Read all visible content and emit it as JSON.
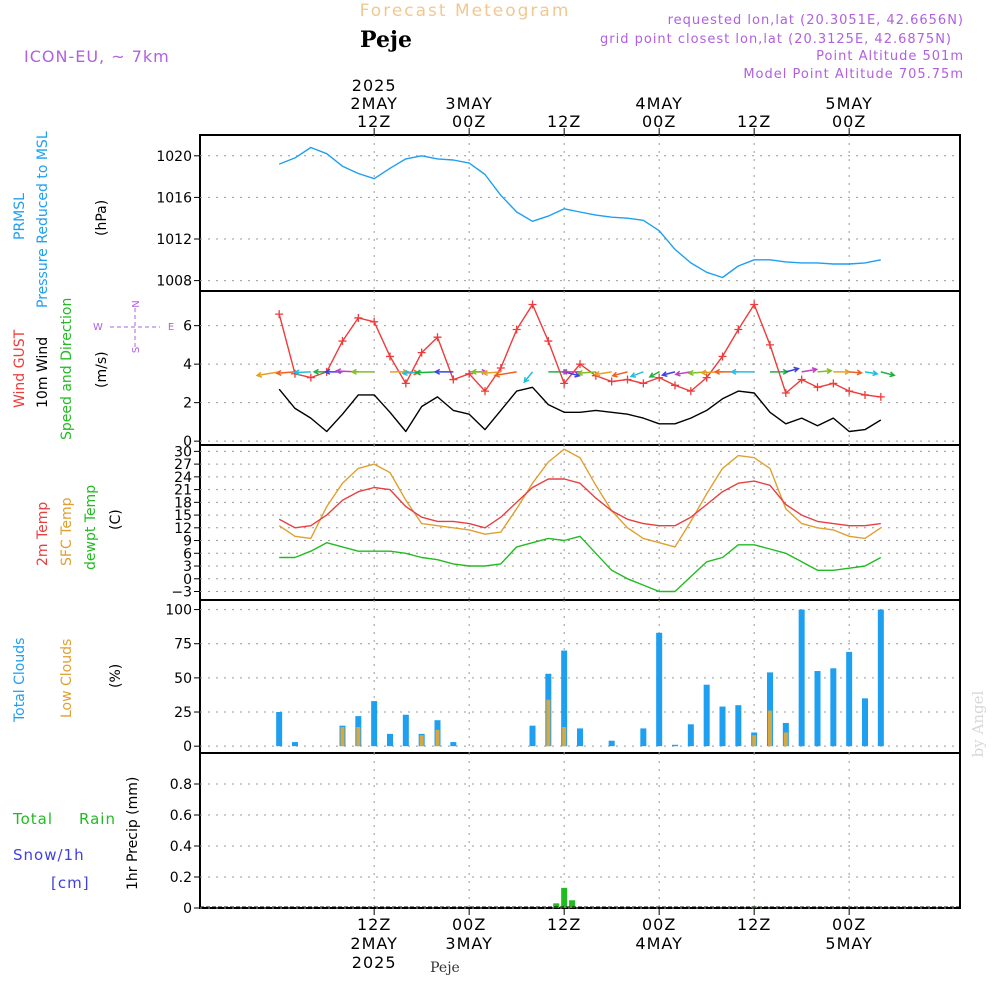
{
  "header": {
    "product": "Forecast Meteogram",
    "location": "Peje",
    "model": "ICON-EU, ~ 7km",
    "requested": "requested lon,lat (20.3051E, 42.6656N)",
    "grid_point": "grid point closest lon,lat (20.3125E, 42.6875N)",
    "altitude": "Point Altitude 501m",
    "model_altitude": "Model Point Altitude 705.75m"
  },
  "footer": {
    "location": "Peje",
    "watermark": "by Angel"
  },
  "time_axis": {
    "top_ticks": [
      {
        "hour": 12,
        "lines": [
          "2025",
          "2MAY",
          "12Z"
        ]
      },
      {
        "hour": 24,
        "lines": [
          "3MAY",
          "00Z"
        ]
      },
      {
        "hour": 36,
        "lines": [
          "12Z"
        ]
      },
      {
        "hour": 48,
        "lines": [
          "4MAY",
          "00Z"
        ]
      },
      {
        "hour": 60,
        "lines": [
          "12Z"
        ]
      },
      {
        "hour": 72,
        "lines": [
          "5MAY",
          "00Z"
        ]
      }
    ],
    "bottom_ticks": [
      {
        "hour": 12,
        "lines": [
          "12Z",
          "2MAY",
          "2025"
        ]
      },
      {
        "hour": 24,
        "lines": [
          "00Z",
          "3MAY"
        ]
      },
      {
        "hour": 36,
        "lines": [
          "12Z"
        ]
      },
      {
        "hour": 48,
        "lines": [
          "00Z",
          "4MAY"
        ]
      },
      {
        "hour": 60,
        "lines": [
          "12Z"
        ]
      },
      {
        "hour": 72,
        "lines": [
          "00Z",
          "5MAY"
        ]
      }
    ]
  },
  "panels": {
    "pressure": {
      "labels": [
        "PRMSL",
        "Pressure Reduced to MSL"
      ],
      "unit": "(hPa)"
    },
    "wind": {
      "labels": [
        "Wind GUST",
        "10m Wind",
        "Speed and Direction"
      ],
      "unit": "(m/s)",
      "compass": {
        "n": "N",
        "s": "S",
        "e": "E",
        "w": "W"
      }
    },
    "temp": {
      "labels": [
        "2m Temp",
        "SFC Temp",
        "dewpt Temp"
      ],
      "unit": "(C)"
    },
    "clouds": {
      "labels": [
        "Total Clouds",
        "Low Clouds"
      ],
      "unit": "(%)"
    },
    "precip": {
      "labels": [
        "Total",
        "Rain",
        "Snow/1h",
        "[cm]"
      ],
      "unit": "1hr Precip (mm)"
    }
  },
  "colors": {
    "pressure": "#1e9ff0",
    "gust": "#ee3b3b",
    "wind": "#000000",
    "temp2m": "#e84040",
    "sfc": "#e0a030",
    "dewpt": "#22bb22",
    "total_clouds": "#1e9ff0",
    "low_clouds": "#d8a840",
    "rain": "#22bb22",
    "snow": "#4040e0",
    "header_purple": "#b060e0",
    "title_orange": "#f0c890"
  },
  "chart_data": [
    {
      "type": "line",
      "title": "PRMSL Pressure Reduced to MSL",
      "ylabel": "(hPa)",
      "ylim": [
        1007,
        1022
      ],
      "yticks": [
        1008,
        1012,
        1016,
        1020
      ],
      "grid": true,
      "series": [
        {
          "name": "PRMSL",
          "x": [
            0,
            2,
            4,
            6,
            8,
            10,
            12,
            14,
            16,
            18,
            20,
            22,
            24,
            26,
            28,
            30,
            32,
            34,
            36,
            38,
            40,
            42,
            44,
            46,
            48,
            50,
            52,
            54,
            56,
            58,
            60,
            62,
            64,
            66,
            68,
            70,
            72,
            74,
            76
          ],
          "values": [
            1019.2,
            1019.8,
            1020.8,
            1020.2,
            1019.0,
            1018.3,
            1017.8,
            1018.8,
            1019.7,
            1020.0,
            1019.7,
            1019.6,
            1019.3,
            1018.2,
            1016.2,
            1014.6,
            1013.7,
            1014.2,
            1014.9,
            1014.6,
            1014.3,
            1014.1,
            1014.0,
            1013.8,
            1012.8,
            1011.0,
            1009.7,
            1008.8,
            1008.3,
            1009.4,
            1010.0,
            1010.0,
            1009.8,
            1009.7,
            1009.7,
            1009.6,
            1009.6,
            1009.7,
            1010.0
          ]
        }
      ]
    },
    {
      "type": "line",
      "title": "Wind GUST / 10m Wind Speed and Direction",
      "ylabel": "(m/s)",
      "ylim": [
        -0.2,
        7.8
      ],
      "yticks": [
        0,
        2,
        4,
        6
      ],
      "grid": true,
      "series": [
        {
          "name": "Wind GUST",
          "x": [
            0,
            2,
            4,
            6,
            8,
            10,
            12,
            14,
            16,
            18,
            20,
            22,
            24,
            26,
            28,
            30,
            32,
            34,
            36,
            38,
            40,
            42,
            44,
            46,
            48,
            50,
            52,
            54,
            56,
            58,
            60,
            62,
            64,
            66,
            68,
            70,
            72,
            74,
            76
          ],
          "values": [
            6.6,
            3.5,
            3.3,
            3.6,
            5.2,
            6.4,
            6.2,
            4.4,
            3.0,
            4.6,
            5.4,
            3.2,
            3.5,
            2.6,
            3.8,
            5.8,
            7.1,
            5.2,
            3.0,
            4.0,
            3.4,
            3.1,
            3.2,
            3.0,
            3.3,
            2.9,
            2.6,
            3.3,
            4.4,
            5.8,
            7.1,
            5.0,
            2.5,
            3.2,
            2.8,
            3.0,
            2.6,
            2.4,
            2.3
          ]
        },
        {
          "name": "10m Wind",
          "x": [
            0,
            2,
            4,
            6,
            8,
            10,
            12,
            14,
            16,
            18,
            20,
            22,
            24,
            26,
            28,
            30,
            32,
            34,
            36,
            38,
            40,
            42,
            44,
            46,
            48,
            50,
            52,
            54,
            56,
            58,
            60,
            62,
            64,
            66,
            68,
            70,
            72,
            74,
            76
          ],
          "values": [
            2.7,
            1.7,
            1.2,
            0.5,
            1.4,
            2.4,
            2.4,
            1.5,
            0.5,
            1.8,
            2.3,
            1.6,
            1.4,
            0.6,
            1.6,
            2.6,
            2.8,
            1.9,
            1.5,
            1.5,
            1.6,
            1.5,
            1.4,
            1.2,
            0.9,
            0.9,
            1.2,
            1.6,
            2.2,
            2.6,
            2.5,
            1.5,
            0.9,
            1.2,
            0.8,
            1.2,
            0.5,
            0.6,
            1.1
          ]
        }
      ],
      "wind_arrows": {
        "x": [
          0,
          2,
          4,
          6,
          8,
          10,
          12,
          14,
          16,
          18,
          20,
          22,
          24,
          26,
          28,
          30,
          32,
          34,
          36,
          38,
          40,
          42,
          44,
          46,
          48,
          50,
          52,
          54,
          56,
          58,
          60,
          62,
          64,
          66,
          68,
          70,
          72,
          74,
          76
        ],
        "direction_deg": [
          250,
          260,
          265,
          270,
          270,
          275,
          270,
          90,
          100,
          260,
          265,
          270,
          90,
          270,
          260,
          250,
          200,
          90,
          120,
          270,
          260,
          250,
          240,
          230,
          220,
          240,
          250,
          260,
          265,
          270,
          270,
          90,
          60,
          70,
          80,
          90,
          100,
          110,
          120
        ],
        "speed": [
          2.7,
          1.7,
          1.2,
          0.5,
          1.4,
          2.4,
          2.4,
          1.5,
          0.5,
          1.8,
          2.3,
          1.6,
          1.4,
          0.6,
          1.6,
          2.6,
          2.8,
          1.9,
          1.5,
          1.5,
          1.6,
          1.5,
          1.4,
          1.2,
          0.9,
          0.9,
          1.2,
          1.6,
          2.2,
          2.6,
          2.5,
          1.5,
          0.9,
          1.2,
          0.8,
          1.2,
          0.5,
          0.6,
          1.1
        ]
      }
    },
    {
      "type": "line",
      "title": "2m Temp / SFC Temp / dewpt Temp",
      "ylabel": "(C)",
      "ylim": [
        -5,
        31.5
      ],
      "yticks": [
        -3,
        0,
        3,
        6,
        9,
        12,
        15,
        18,
        21,
        24,
        27,
        30
      ],
      "grid": true,
      "series": [
        {
          "name": "2m Temp",
          "x": [
            0,
            2,
            4,
            6,
            8,
            10,
            12,
            14,
            16,
            18,
            20,
            22,
            24,
            26,
            28,
            30,
            32,
            34,
            36,
            38,
            40,
            42,
            44,
            46,
            48,
            50,
            52,
            54,
            56,
            58,
            60,
            62,
            64,
            66,
            68,
            70,
            72,
            74,
            76
          ],
          "values": [
            14.0,
            12.0,
            12.5,
            15.0,
            18.5,
            20.5,
            21.5,
            21.0,
            17.0,
            14.5,
            13.5,
            13.5,
            13.0,
            12.0,
            14.5,
            18.0,
            21.5,
            23.5,
            23.5,
            22.5,
            19.0,
            16.0,
            14.0,
            13.0,
            12.5,
            12.5,
            14.5,
            17.5,
            20.5,
            22.5,
            23.0,
            22.0,
            17.5,
            15.0,
            13.5,
            13.0,
            12.5,
            12.5,
            13.0
          ]
        },
        {
          "name": "SFC Temp",
          "x": [
            0,
            2,
            4,
            6,
            8,
            10,
            12,
            14,
            16,
            18,
            20,
            22,
            24,
            26,
            28,
            30,
            32,
            34,
            36,
            38,
            40,
            42,
            44,
            46,
            48,
            50,
            52,
            54,
            56,
            58,
            60,
            62,
            64,
            66,
            68,
            70,
            72,
            74,
            76
          ],
          "values": [
            12.5,
            10.0,
            9.5,
            17.0,
            22.5,
            26.0,
            27.0,
            25.0,
            18.5,
            13.0,
            12.5,
            12.0,
            11.5,
            10.5,
            11.0,
            16.5,
            22.5,
            27.5,
            30.5,
            28.5,
            22.0,
            16.0,
            12.0,
            9.5,
            8.5,
            7.5,
            13.5,
            20.0,
            26.0,
            29.0,
            28.5,
            26.0,
            16.5,
            13.0,
            12.0,
            11.5,
            10.0,
            9.5,
            12.0
          ]
        },
        {
          "name": "dewpt Temp",
          "x": [
            0,
            2,
            4,
            6,
            8,
            10,
            12,
            14,
            16,
            18,
            20,
            22,
            24,
            26,
            28,
            30,
            32,
            34,
            36,
            38,
            40,
            42,
            44,
            46,
            48,
            50,
            52,
            54,
            56,
            58,
            60,
            62,
            64,
            66,
            68,
            70,
            72,
            74,
            76
          ],
          "values": [
            5.0,
            5.0,
            6.5,
            8.5,
            7.5,
            6.5,
            6.5,
            6.5,
            6.0,
            5.0,
            4.5,
            3.5,
            3.0,
            3.0,
            3.5,
            7.5,
            8.5,
            9.5,
            9.0,
            10.0,
            6.0,
            2.0,
            0.0,
            -1.5,
            -3.0,
            -3.0,
            0.5,
            4.0,
            5.0,
            8.0,
            8.0,
            7.0,
            6.0,
            4.0,
            2.0,
            2.0,
            2.5,
            3.0,
            5.0
          ]
        }
      ]
    },
    {
      "type": "bar",
      "title": "Total Clouds / Low Clouds",
      "ylabel": "(%)",
      "ylim": [
        -5,
        107
      ],
      "yticks": [
        0,
        25,
        50,
        75,
        100
      ],
      "grid": true,
      "series": [
        {
          "name": "Total Clouds",
          "x": [
            0,
            2,
            4,
            6,
            8,
            10,
            12,
            14,
            16,
            18,
            20,
            22,
            24,
            26,
            28,
            30,
            32,
            34,
            36,
            38,
            40,
            42,
            44,
            46,
            48,
            50,
            52,
            54,
            56,
            58,
            60,
            62,
            64,
            66,
            68,
            70,
            72,
            74,
            76
          ],
          "values": [
            25,
            3,
            0,
            0,
            15,
            22,
            33,
            9,
            23,
            9,
            19,
            3,
            0,
            0,
            0,
            0,
            15,
            53,
            70,
            13,
            0,
            4,
            0,
            13,
            83,
            1,
            16,
            45,
            29,
            30,
            10,
            54,
            17,
            100,
            55,
            57,
            69,
            35,
            100
          ]
        },
        {
          "name": "Low Clouds",
          "x": [
            0,
            2,
            4,
            6,
            8,
            10,
            12,
            14,
            16,
            18,
            20,
            22,
            24,
            26,
            28,
            30,
            32,
            34,
            36,
            38,
            40,
            42,
            44,
            46,
            48,
            50,
            52,
            54,
            56,
            58,
            60,
            62,
            64,
            66,
            68,
            70,
            72,
            74,
            76
          ],
          "values": [
            0,
            0,
            0,
            0,
            14,
            14,
            0,
            0,
            0,
            8,
            12,
            0,
            0,
            0,
            0,
            0,
            0,
            34,
            14,
            0,
            0,
            0,
            0,
            0,
            0,
            0,
            0,
            0,
            0,
            0,
            8,
            26,
            10,
            0,
            0,
            0,
            0,
            0,
            0
          ]
        }
      ]
    },
    {
      "type": "bar",
      "title": "1hr Precip",
      "ylabel": "1hr Precip (mm)",
      "ylim": [
        0,
        1.0
      ],
      "yticks": [
        0,
        0.2,
        0.4,
        0.6,
        0.8
      ],
      "grid": true,
      "series": [
        {
          "name": "Total Rain",
          "x": [
            35,
            36,
            37,
            60
          ],
          "values": [
            0.03,
            0.13,
            0.05,
            0.01
          ]
        }
      ]
    }
  ]
}
